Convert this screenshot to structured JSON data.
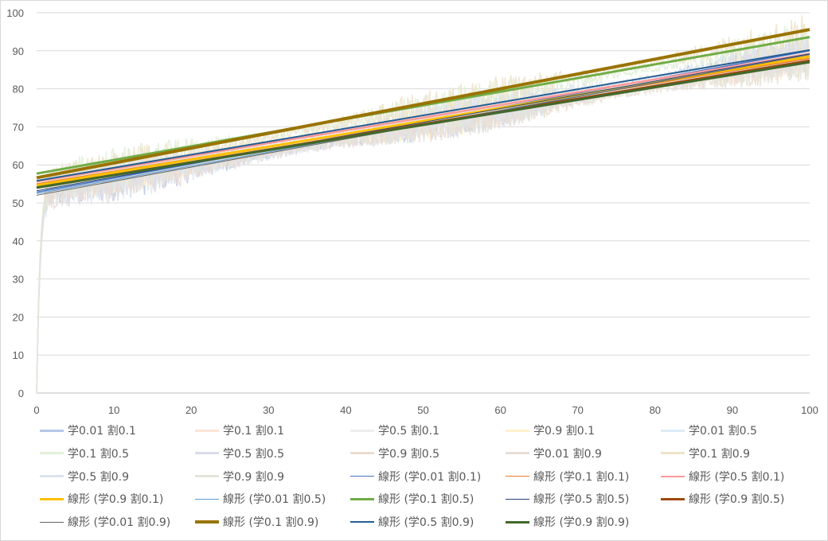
{
  "chart_data": {
    "type": "line",
    "title": "",
    "xlabel": "",
    "ylabel": "",
    "xlim": [
      0,
      100
    ],
    "ylim": [
      0,
      100
    ],
    "xticks": [
      "0",
      "10",
      "20",
      "30",
      "40",
      "50",
      "60",
      "70",
      "80",
      "90",
      "100"
    ],
    "yticks": [
      "0",
      "10",
      "20",
      "30",
      "40",
      "50",
      "60",
      "70",
      "80",
      "90",
      "100"
    ],
    "grid": "horizontal",
    "legend_position": "bottom",
    "raw_series_note": "noisy series: rise from 0 to ~52 within x<2, then roughly linear upward with noise",
    "series": [
      {
        "name": "学0.01 割0.1",
        "color": "#b4c7e7",
        "kind": "raw",
        "start": 52,
        "end": 90,
        "noise": 3
      },
      {
        "name": "学0.1 割0.1",
        "color": "#fbe5d6",
        "kind": "raw",
        "start": 55,
        "end": 88,
        "noise": 3
      },
      {
        "name": "学0.5 割0.1",
        "color": "#ededed",
        "kind": "raw",
        "start": 55,
        "end": 89,
        "noise": 3
      },
      {
        "name": "学0.9 割0.1",
        "color": "#fff2cc",
        "kind": "raw",
        "start": 54,
        "end": 88,
        "noise": 3
      },
      {
        "name": "学0.01 割0.5",
        "color": "#deebf7",
        "kind": "raw",
        "start": 52,
        "end": 89,
        "noise": 3
      },
      {
        "name": "学0.1 割0.5",
        "color": "#e2f0d9",
        "kind": "raw",
        "start": 57,
        "end": 93,
        "noise": 3
      },
      {
        "name": "学0.5 割0.5",
        "color": "#dadbe8",
        "kind": "raw",
        "start": 53,
        "end": 89,
        "noise": 3
      },
      {
        "name": "学0.9 割0.5",
        "color": "#ecdcd0",
        "kind": "raw",
        "start": 54,
        "end": 87,
        "noise": 3
      },
      {
        "name": "学0.01 割0.9",
        "color": "#e8ddd8",
        "kind": "raw",
        "start": 52,
        "end": 89,
        "noise": 3
      },
      {
        "name": "学0.1 割0.9",
        "color": "#ede3c8",
        "kind": "raw",
        "start": 56,
        "end": 95,
        "noise": 3
      },
      {
        "name": "学0.5 割0.9",
        "color": "#dde4ef",
        "kind": "raw",
        "start": 55,
        "end": 90,
        "noise": 3
      },
      {
        "name": "学0.9 割0.9",
        "color": "#e3e5da",
        "kind": "raw",
        "start": 54,
        "end": 87,
        "noise": 3
      },
      {
        "name": "線形 (学0.01 割0.1)",
        "color": "#4472c4",
        "kind": "trend",
        "y0": 52.8,
        "y100": 90.0,
        "width": 1.5
      },
      {
        "name": "線形 (学0.1 割0.1)",
        "color": "#ed7d31",
        "kind": "trend",
        "y0": 55.0,
        "y100": 88.0,
        "width": 1.5
      },
      {
        "name": "線形 (学0.5 割0.1)",
        "color": "#ff9999",
        "kind": "trend",
        "y0": 55.6,
        "y100": 89.2,
        "width": 2.5
      },
      {
        "name": "線形 (学0.9 割0.1)",
        "color": "#ffc000",
        "kind": "trend",
        "y0": 54.6,
        "y100": 88.5,
        "width": 3
      },
      {
        "name": "線形 (学0.01 割0.5)",
        "color": "#5b9bd5",
        "kind": "trend",
        "y0": 52.4,
        "y100": 89.0,
        "width": 1
      },
      {
        "name": "線形 (学0.1 割0.5)",
        "color": "#70ad47",
        "kind": "trend",
        "y0": 57.7,
        "y100": 93.6,
        "width": 3
      },
      {
        "name": "線形 (学0.5 割0.5)",
        "color": "#264478",
        "kind": "trend",
        "y0": 53.2,
        "y100": 89.2,
        "width": 1
      },
      {
        "name": "線形 (学0.9 割0.5)",
        "color": "#9e480e",
        "kind": "trend",
        "y0": 54.0,
        "y100": 87.4,
        "width": 3
      },
      {
        "name": "線形 (学0.01 割0.9)",
        "color": "#636363",
        "kind": "trend",
        "y0": 52.0,
        "y100": 89.0,
        "width": 1
      },
      {
        "name": "線形 (学0.1 割0.9)",
        "color": "#997300",
        "kind": "trend",
        "y0": 56.6,
        "y100": 95.6,
        "width": 4
      },
      {
        "name": "線形 (学0.5 割0.9)",
        "color": "#255e91",
        "kind": "trend",
        "y0": 55.8,
        "y100": 90.2,
        "width": 2
      },
      {
        "name": "線形 (学0.9 割0.9)",
        "color": "#43682b",
        "kind": "trend",
        "y0": 54.0,
        "y100": 87.0,
        "width": 3
      }
    ]
  }
}
